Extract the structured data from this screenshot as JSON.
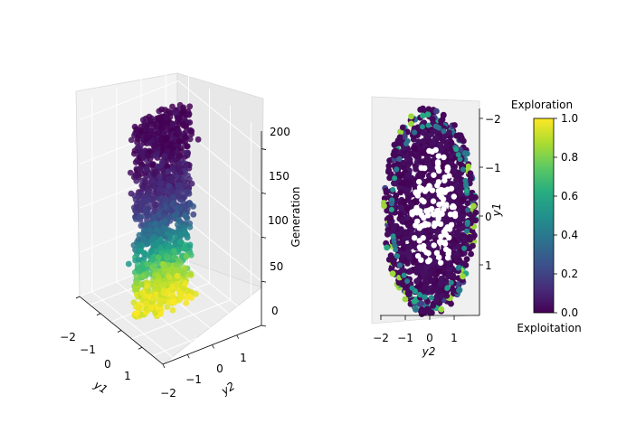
{
  "chart_data": [
    {
      "type": "scatter",
      "view": "3d",
      "xlabel": "y1",
      "ylabel": "y2",
      "zlabel": "Generation",
      "xticks": [
        "−2",
        "−1",
        "0",
        "1"
      ],
      "yticks": [
        "−2",
        "−1",
        "0",
        "1"
      ],
      "zticks": [
        "0",
        "50",
        "100",
        "150",
        "200"
      ],
      "xlim": [
        -2,
        2
      ],
      "ylim": [
        -2,
        2
      ],
      "zlim": [
        0,
        220
      ],
      "color_variable": "Exploration",
      "colormap": "viridis",
      "shape": "elliptic column",
      "generations": 220,
      "color_profile": [
        {
          "generation": 0,
          "exploration": 0.98
        },
        {
          "generation": 20,
          "exploration": 0.95
        },
        {
          "generation": 40,
          "exploration": 0.82
        },
        {
          "generation": 60,
          "exploration": 0.6
        },
        {
          "generation": 80,
          "exploration": 0.42
        },
        {
          "generation": 100,
          "exploration": 0.25
        },
        {
          "generation": 130,
          "exploration": 0.12
        },
        {
          "generation": 170,
          "exploration": 0.03
        },
        {
          "generation": 220,
          "exploration": 0.0
        }
      ]
    },
    {
      "type": "scatter",
      "view": "top-down projection",
      "xlabel": "y2",
      "ylabel": "y1",
      "xticks": [
        "−2",
        "−1",
        "0",
        "1"
      ],
      "yticks": [
        "−2",
        "−1",
        "0",
        "1"
      ],
      "xlim": [
        -2,
        2
      ],
      "ylim": [
        -2,
        2
      ],
      "shape": "ellipse",
      "dominant_exploration": 0.0,
      "outer_ring_exploration": [
        0.2,
        0.4,
        0.6,
        0.85
      ]
    }
  ],
  "colorbar": {
    "title": "Exploration",
    "bottom_label": "Exploitation",
    "ticks": [
      "0.0",
      "0.2",
      "0.4",
      "0.6",
      "0.8",
      "1.0"
    ],
    "range": [
      0,
      1
    ],
    "colormap": "viridis"
  },
  "colors": {
    "viridis_low": "#440154",
    "viridis_mid": "#21908d",
    "viridis_high": "#fde725"
  }
}
